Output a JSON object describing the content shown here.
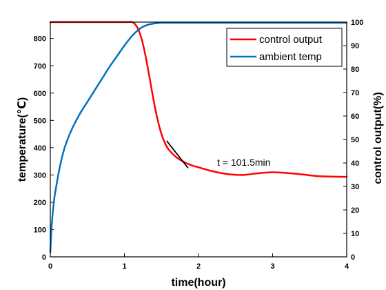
{
  "chart_data": {
    "type": "line",
    "xlabel": "time(hour)",
    "ylabel_left": "temperature(℃)",
    "ylabel_right": "control output(%)",
    "xlim": [
      0,
      4
    ],
    "ylim_left": [
      0,
      860
    ],
    "ylim_right": [
      0,
      100
    ],
    "xticks": [
      0,
      1,
      2,
      3,
      4
    ],
    "yticks_left": [
      0,
      100,
      200,
      300,
      400,
      500,
      600,
      700,
      800
    ],
    "yticks_right": [
      0,
      10,
      20,
      30,
      40,
      50,
      60,
      70,
      80,
      90,
      100
    ],
    "grid": false,
    "legend_position": "top-right",
    "series": [
      {
        "name": "control output",
        "color": "#ff0000",
        "axis": "left",
        "x": [
          0,
          0.5,
          1.0,
          1.1,
          1.15,
          1.2,
          1.25,
          1.3,
          1.35,
          1.4,
          1.45,
          1.5,
          1.55,
          1.6,
          1.7,
          1.8,
          1.9,
          2.0,
          2.2,
          2.4,
          2.6,
          2.8,
          3.0,
          3.2,
          3.4,
          3.6,
          3.8,
          4.0
        ],
        "values": [
          860,
          860,
          860,
          860,
          850,
          825,
          780,
          715,
          640,
          565,
          500,
          450,
          415,
          392,
          365,
          348,
          336,
          328,
          313,
          303,
          300,
          306,
          310,
          307,
          302,
          296,
          294,
          293
        ]
      },
      {
        "name": "ambient temp",
        "color": "#0070c0",
        "axis": "right",
        "x": [
          0,
          0.02,
          0.05,
          0.08,
          0.12,
          0.17,
          0.22,
          0.3,
          0.4,
          0.5,
          0.6,
          0.7,
          0.8,
          0.9,
          1.0,
          1.1,
          1.2,
          1.3,
          1.4,
          1.45,
          1.5,
          1.55,
          1.6,
          2.0,
          2.5,
          3.0,
          3.5,
          4.0
        ],
        "values": [
          2,
          14,
          24,
          30,
          37,
          44,
          49,
          55,
          61,
          66,
          71,
          76,
          81,
          85.5,
          90,
          94,
          97,
          98.7,
          99.4,
          99.6,
          99.7,
          99.7,
          99.7,
          99.7,
          99.7,
          99.7,
          99.7,
          99.7
        ]
      }
    ],
    "annotation": {
      "text": "t = 101.5min",
      "tangent_line": {
        "x": [
          1.57,
          1.86
        ],
        "y": [
          425,
          325
        ]
      }
    }
  }
}
